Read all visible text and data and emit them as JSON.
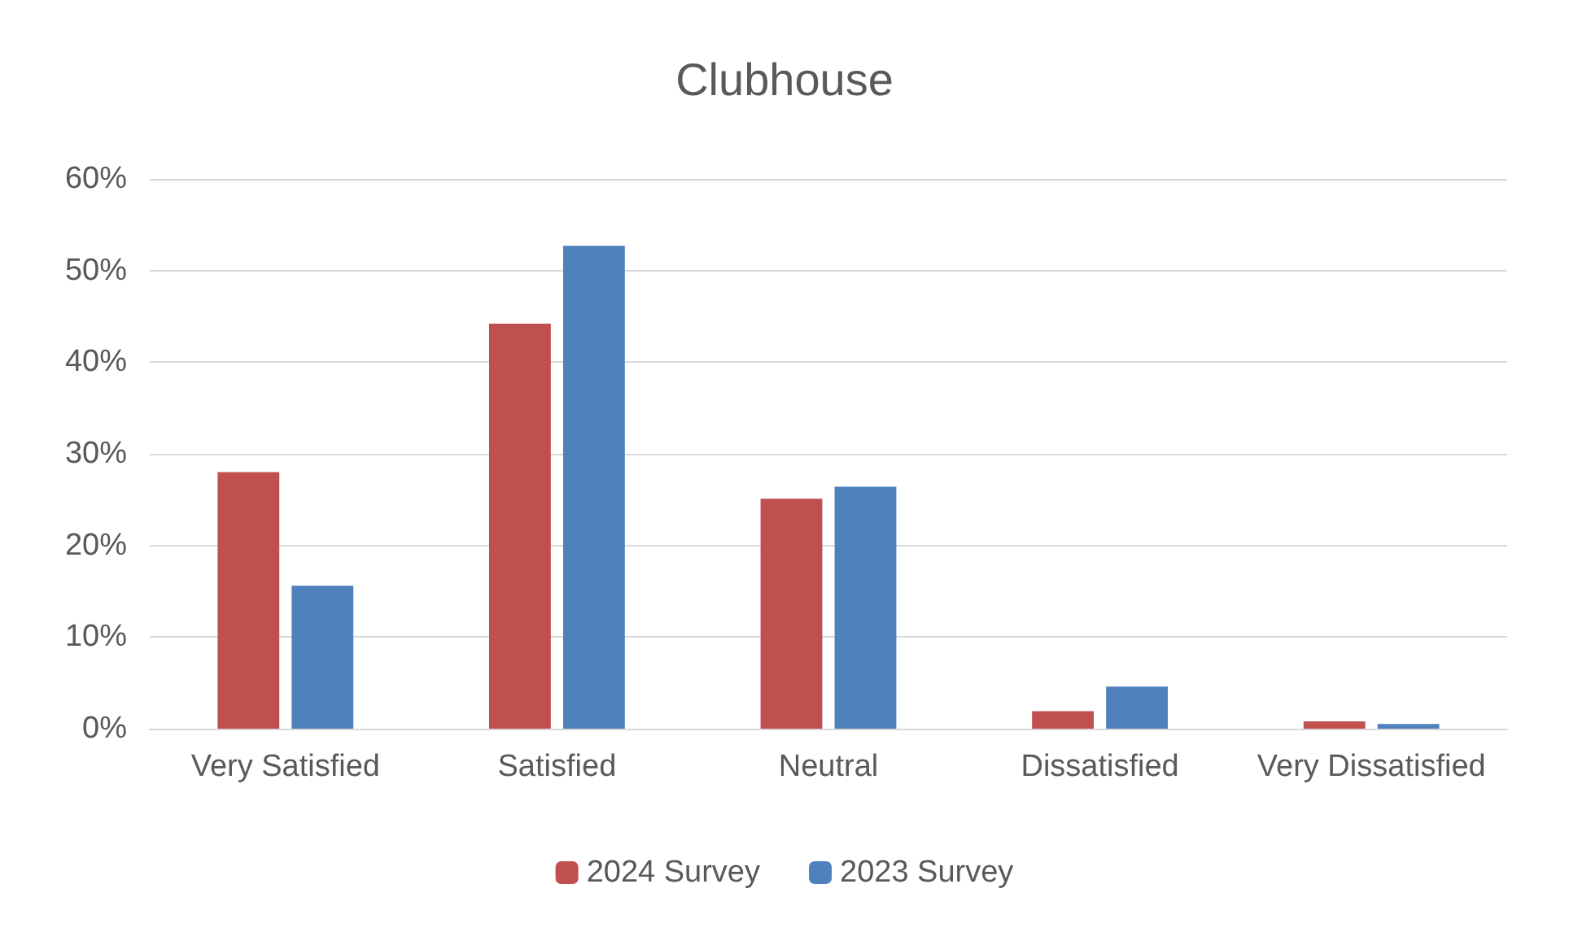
{
  "chart_data": {
    "type": "bar",
    "title": "Clubhouse",
    "categories": [
      "Very Satisfied",
      "Satisfied",
      "Neutral",
      "Dissatisfied",
      "Very Dissatisfied"
    ],
    "series": [
      {
        "name": "2024 Survey",
        "color": "#c0504d",
        "values": [
          28,
          44.2,
          25.1,
          1.9,
          0.8
        ]
      },
      {
        "name": "2023 Survey",
        "color": "#4f81bd",
        "values": [
          15.6,
          52.7,
          26.4,
          4.6,
          0.5
        ]
      }
    ],
    "ylim": [
      0,
      60
    ],
    "yticks": [
      {
        "value": 0,
        "label": "0%"
      },
      {
        "value": 10,
        "label": "10%"
      },
      {
        "value": 20,
        "label": "20%"
      },
      {
        "value": 30,
        "label": "30%"
      },
      {
        "value": 40,
        "label": "40%"
      },
      {
        "value": 50,
        "label": "50%"
      },
      {
        "value": 60,
        "label": "60%"
      }
    ],
    "grid": "y",
    "legend": "bottom"
  }
}
